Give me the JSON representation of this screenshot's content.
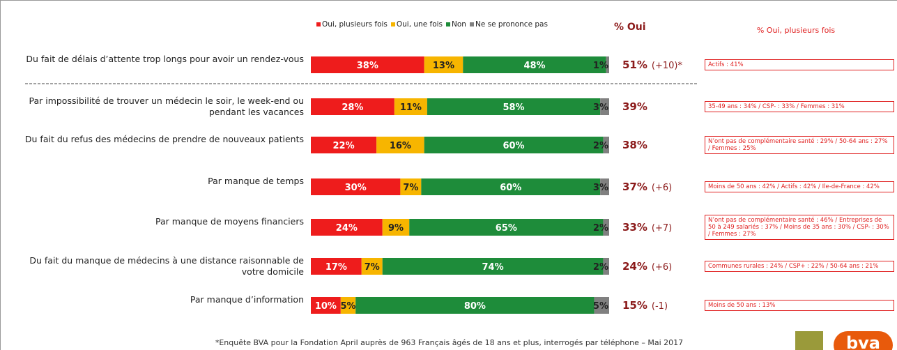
{
  "chart_data": {
    "type": "bar",
    "orientation": "horizontal",
    "stacked": true,
    "xlim": [
      0,
      100
    ],
    "categories": [
      "Du fait de délais d’attente trop longs pour avoir un rendez-vous",
      "Par impossibilité de trouver un médecin le soir, le week-end ou pendant les vacances",
      "Du fait du refus des médecins de prendre de nouveaux patients",
      "Par manque de temps",
      "Par manque de moyens financiers",
      "Du fait du manque de médecins à une distance raisonnable de votre domicile",
      "Par manque d’information"
    ],
    "series": [
      {
        "name": "Oui, plusieurs fois",
        "color": "#ee1c1c",
        "values": [
          38,
          28,
          22,
          30,
          24,
          17,
          10
        ],
        "value_labels": [
          "38%",
          "28%",
          "22%",
          "30%",
          "24%",
          "17%",
          "10%"
        ]
      },
      {
        "name": "Oui, une fois",
        "color": "#f7b500",
        "values": [
          13,
          11,
          16,
          7,
          9,
          7,
          5
        ],
        "value_labels": [
          "13%",
          "11%",
          "16%",
          "7%",
          "9%",
          "7%",
          "5%"
        ]
      },
      {
        "name": "Non",
        "color": "#1e8c3a",
        "values": [
          48,
          58,
          60,
          60,
          65,
          74,
          80
        ],
        "value_labels": [
          "48%",
          "58%",
          "60%",
          "60%",
          "65%",
          "74%",
          "80%"
        ]
      },
      {
        "name": "Ne se prononce pas",
        "color": "#808080",
        "values": [
          1,
          3,
          2,
          3,
          2,
          2,
          5
        ],
        "value_labels": [
          "1%",
          "3%",
          "2%",
          "3%",
          "2%",
          "2%",
          "5%"
        ]
      }
    ],
    "oui_total": {
      "title": "% Oui",
      "values": [
        51,
        39,
        38,
        37,
        33,
        24,
        15
      ],
      "value_labels": [
        "51%",
        "39%",
        "38%",
        "37%",
        "33%",
        "24%",
        "15%"
      ],
      "changes": [
        "(+10)*",
        null,
        null,
        "(+6)",
        "(+7)",
        "(+6)",
        "(-1)"
      ]
    },
    "subgroups": {
      "title": "% Oui, plusieurs fois",
      "texts": [
        "Actifs : 41%",
        "35-49 ans : 34% / CSP- : 33% / Femmes : 31%",
        "N’ont pas de complémentaire santé : 29% / 50-64 ans : 27% / Femmes : 25%",
        "Moins de 50 ans : 42% / Actifs : 42% / Ile-de-France : 42%",
        "N’ont pas de complémentaire santé : 46% / Entreprises de 50 à 249 salariés : 37%  / Moins de 35 ans : 30% / CSP- : 30% / Femmes : 27%",
        "Communes rurales : 24% / CSP+ : 22% / 50-64 ans : 21%",
        "Moins de 50 ans : 13%"
      ]
    },
    "footnote": "*Enquête BVA pour la Fondation April auprès de 963 Français âgés de 18 ans et plus, interrogés par téléphone – Mai 2017",
    "logo": "bva"
  }
}
